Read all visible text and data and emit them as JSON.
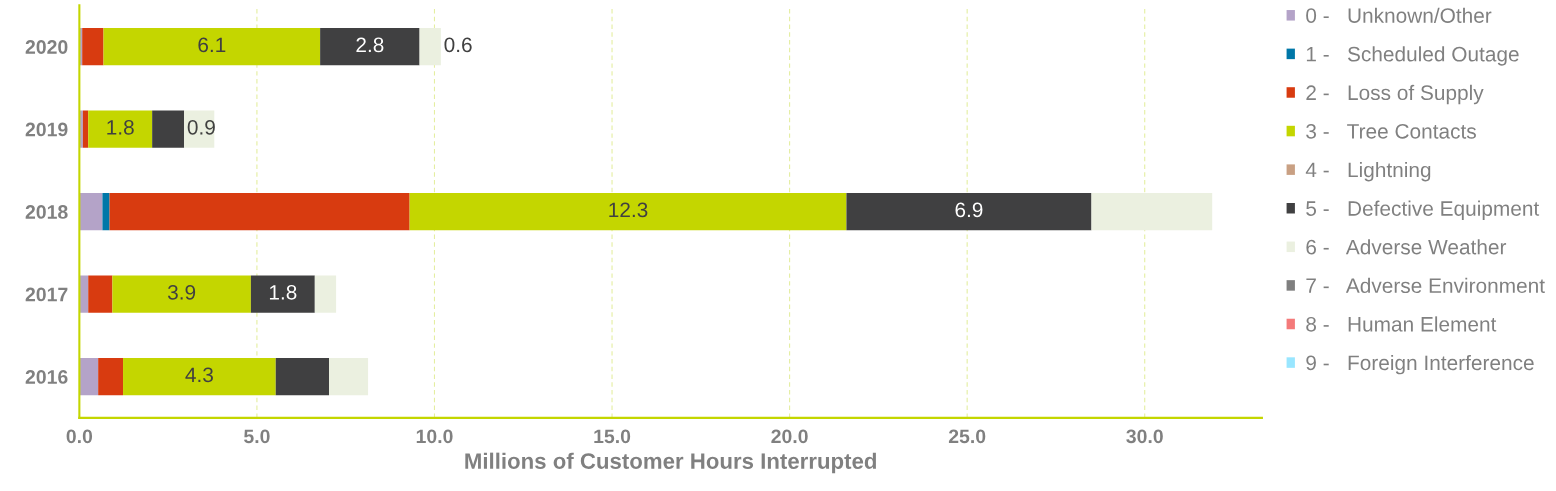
{
  "chart_data": {
    "type": "bar",
    "orientation": "horizontal",
    "stacked": true,
    "categories": [
      "2020",
      "2019",
      "2018",
      "2017",
      "2016"
    ],
    "xlabel": "Millions of Customer Hours Interrupted",
    "xlim": [
      0,
      33.3
    ],
    "xticks": [
      {
        "value": 0,
        "label": "0.0"
      },
      {
        "value": 5,
        "label": "5.0"
      },
      {
        "value": 10,
        "label": "10.0"
      },
      {
        "value": 15,
        "label": "15.0"
      },
      {
        "value": 20,
        "label": "20.0"
      },
      {
        "value": 25,
        "label": "25.0"
      },
      {
        "value": 30,
        "label": "30.0"
      }
    ],
    "grid": "x",
    "legend": "right",
    "series": [
      {
        "name": "0 -   Unknown/Other",
        "color": "#b4a3c8",
        "values": [
          0.08,
          0.1,
          0.65,
          0.25,
          0.53
        ]
      },
      {
        "name": "1 -   Scheduled Outage",
        "color": "#0077a8",
        "values": [
          0,
          0,
          0.2,
          0,
          0
        ]
      },
      {
        "name": "2 -   Loss of Supply",
        "color": "#d83b10",
        "values": [
          0.6,
          0.15,
          8.45,
          0.68,
          0.7
        ]
      },
      {
        "name": "3 -   Tree Contacts",
        "color": "#c4d600",
        "values": [
          6.1,
          1.8,
          12.3,
          3.9,
          4.3
        ],
        "value_labels": [
          "6.1",
          "1.8",
          "12.3",
          "3.9",
          "4.3"
        ]
      },
      {
        "name": "4 -   Lightning",
        "color": "#c9a083",
        "values": [
          0,
          0,
          0,
          0,
          0
        ]
      },
      {
        "name": "5 -   Defective Equipment",
        "color": "#404041",
        "values": [
          2.8,
          0.9,
          6.9,
          1.8,
          1.5
        ],
        "value_labels": [
          "2.8",
          "0.9",
          "6.9",
          "1.8",
          null
        ]
      },
      {
        "name": "6 -   Adverse Weather",
        "color": "#ebf0e0",
        "values": [
          0.6,
          0.85,
          3.4,
          0.6,
          1.1
        ],
        "value_labels": [
          "0.6",
          null,
          null,
          null,
          null
        ]
      },
      {
        "name": "7 -   Adverse Environment",
        "color": "#7f7f7f",
        "values": [
          0,
          0,
          0,
          0,
          0
        ]
      },
      {
        "name": "8 -   Human Element",
        "color": "#f47a7a",
        "values": [
          0,
          0,
          0,
          0,
          0
        ]
      },
      {
        "name": "9 -   Foreign Interference",
        "color": "#99e6ff",
        "values": [
          0,
          0,
          0,
          0,
          0
        ]
      }
    ]
  }
}
